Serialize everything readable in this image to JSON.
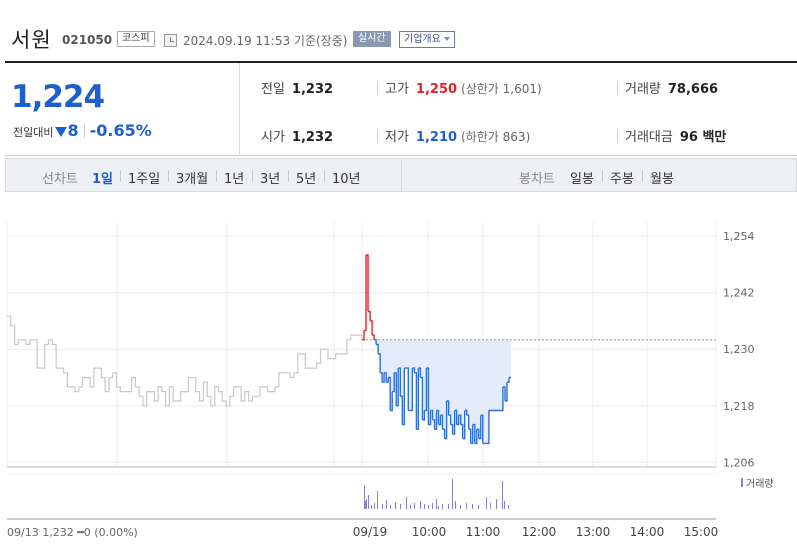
{
  "header": {
    "name": "서원",
    "code": "021050",
    "market": "코스피",
    "timestamp": "2024.09.19 11:53 기준(장중)",
    "realtime": "실시간",
    "company_info": "기업개요"
  },
  "price": {
    "current": "1,224",
    "change_label": "전일대비",
    "change_amount": "8",
    "change_pct": "-0.65%"
  },
  "stats": {
    "prev_label": "전일",
    "prev": "1,232",
    "high_label": "고가",
    "high": "1,250",
    "upper_limit": "(상한가 1,601)",
    "volume_label": "거래량",
    "volume": "78,666",
    "open_label": "시가",
    "open": "1,232",
    "low_label": "저가",
    "low": "1,210",
    "lower_limit": "(하한가 863)",
    "amount_label": "거래대금",
    "amount": "96 백만"
  },
  "periods": {
    "line_label": "선차트",
    "line_options": [
      "1일",
      "1주일",
      "3개월",
      "1년",
      "3년",
      "5년",
      "10년"
    ],
    "candle_label": "봉차트",
    "candle_options": [
      "일봉",
      "주봉",
      "월봉"
    ]
  },
  "chart_data": {
    "type": "line",
    "y_ticks": [
      "1,254",
      "1,242",
      "1,230",
      "1,218",
      "1,206"
    ],
    "ylim": [
      1205,
      1257
    ],
    "x_ticks": [
      "09/19",
      "10:00",
      "11:00",
      "12:00",
      "13:00",
      "14:00",
      "15:00"
    ],
    "prev_close": 1232,
    "volume_legend": "거래량",
    "footer_note": "09/13 1,232 ━0 (0.00%)",
    "colors": {
      "up": "#e0232a",
      "down": "#2f6fd6",
      "history": "#c8c8c8",
      "fill": "#e4ecfa",
      "volume": "#8a80c8"
    },
    "history_series": [
      1237,
      1235,
      1231,
      1232,
      1232,
      1231,
      1232,
      1232,
      1226,
      1226,
      1231,
      1232,
      1231,
      1226,
      1226,
      1225,
      1222,
      1222,
      1221,
      1222,
      1224,
      1224,
      1222,
      1226,
      1226,
      1224,
      1221,
      1224,
      1225,
      1222,
      1221,
      1221,
      1221,
      1224,
      1222,
      1220,
      1218,
      1221,
      1221,
      1219,
      1222,
      1221,
      1218,
      1222,
      1219,
      1219,
      1221,
      1221,
      1224,
      1224,
      1221,
      1219,
      1223,
      1220,
      1218,
      1222,
      1221,
      1219,
      1218,
      1220,
      1222,
      1222,
      1219,
      1221,
      1219,
      1220,
      1220,
      1222,
      1222,
      1221,
      1221,
      1222,
      1225,
      1225,
      1225,
      1224,
      1225,
      1229,
      1229,
      1226,
      1226,
      1226,
      1227,
      1230,
      1230,
      1228,
      1228,
      1229,
      1229,
      1229,
      1232,
      1233,
      1233,
      1233,
      1232
    ],
    "today_series": [
      1232,
      1234,
      1250,
      1238,
      1236,
      1233,
      1232,
      1231,
      1229,
      1225,
      1223,
      1225,
      1223,
      1224,
      1217,
      1221,
      1225,
      1218,
      1226,
      1220,
      1214,
      1226,
      1226,
      1217,
      1217,
      1226,
      1225,
      1213,
      1226,
      1224,
      1215,
      1217,
      1226,
      1214,
      1217,
      1215,
      1213,
      1217,
      1214,
      1216,
      1213,
      1211,
      1219,
      1216,
      1214,
      1212,
      1217,
      1214,
      1216,
      1214,
      1211,
      1217,
      1216,
      1213,
      1210,
      1214,
      1210,
      1213,
      1211,
      1216,
      1210,
      1210,
      1210,
      1217,
      1217,
      1217,
      1217,
      1217,
      1217,
      1217,
      1222,
      1219,
      1223,
      1224,
      1224
    ]
  }
}
